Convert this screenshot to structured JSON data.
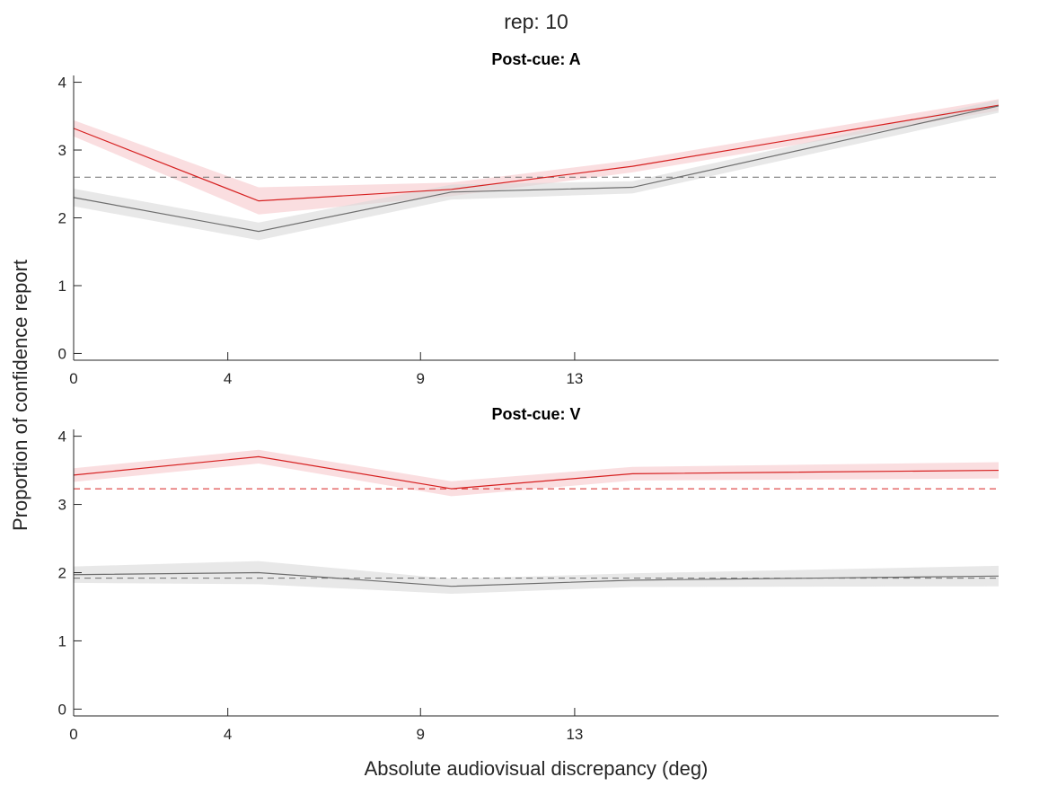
{
  "figure": {
    "suptitle": "rep: 10",
    "xlabel": "Absolute audiovisual discrepancy (deg)",
    "ylabel": "Proportion of confidence report"
  },
  "colors": {
    "red_line": "#d62020",
    "red_band": "#f6c8cc",
    "gray_line": "#6e6e6e",
    "gray_band": "#d9d9d9",
    "axis": "#262626"
  },
  "chart_data": [
    {
      "type": "line",
      "title": "Post-cue: A",
      "xlim": [
        0,
        24
      ],
      "ylim": [
        -0.1,
        4.1
      ],
      "xticks": [
        0,
        4,
        9,
        13
      ],
      "xtick_labels": [
        "0",
        "4",
        "9",
        "13"
      ],
      "yticks": [
        0,
        1,
        2,
        3,
        4
      ],
      "ytick_labels": [
        "0",
        "1",
        "2",
        "3",
        "4"
      ],
      "x": [
        0,
        4.8,
        9.8,
        14.5,
        24
      ],
      "series": [
        {
          "color_key": "red",
          "values": [
            3.32,
            2.25,
            2.42,
            2.76,
            3.66
          ],
          "lower": [
            3.2,
            2.05,
            2.32,
            2.67,
            3.58
          ],
          "upper": [
            3.44,
            2.45,
            2.52,
            2.85,
            3.75
          ]
        },
        {
          "color_key": "gray",
          "values": [
            2.3,
            1.8,
            2.38,
            2.45,
            3.65
          ],
          "lower": [
            2.17,
            1.67,
            2.27,
            2.36,
            3.55
          ],
          "upper": [
            2.43,
            1.93,
            2.49,
            2.54,
            3.74
          ]
        }
      ],
      "reference_lines": [
        {
          "color_key": "gray",
          "y": 2.6,
          "style": "dashed"
        }
      ]
    },
    {
      "type": "line",
      "title": "Post-cue: V",
      "xlim": [
        0,
        24
      ],
      "ylim": [
        -0.1,
        4.1
      ],
      "xticks": [
        0,
        4,
        9,
        13
      ],
      "xtick_labels": [
        "0",
        "4",
        "9",
        "13"
      ],
      "yticks": [
        0,
        1,
        2,
        3,
        4
      ],
      "ytick_labels": [
        "0",
        "1",
        "2",
        "3",
        "4"
      ],
      "x": [
        0,
        4.8,
        9.8,
        14.5,
        24
      ],
      "series": [
        {
          "color_key": "red",
          "values": [
            3.43,
            3.7,
            3.23,
            3.45,
            3.5
          ],
          "lower": [
            3.33,
            3.6,
            3.12,
            3.35,
            3.38
          ],
          "upper": [
            3.53,
            3.8,
            3.34,
            3.55,
            3.62
          ]
        },
        {
          "color_key": "gray",
          "values": [
            1.97,
            2.0,
            1.8,
            1.89,
            1.95
          ],
          "lower": [
            1.85,
            1.83,
            1.69,
            1.79,
            1.8
          ],
          "upper": [
            2.09,
            2.17,
            1.91,
            1.99,
            2.1
          ]
        }
      ],
      "reference_lines": [
        {
          "color_key": "red",
          "y": 3.23,
          "style": "dashed"
        },
        {
          "color_key": "gray",
          "y": 1.92,
          "style": "dashed"
        }
      ]
    }
  ]
}
